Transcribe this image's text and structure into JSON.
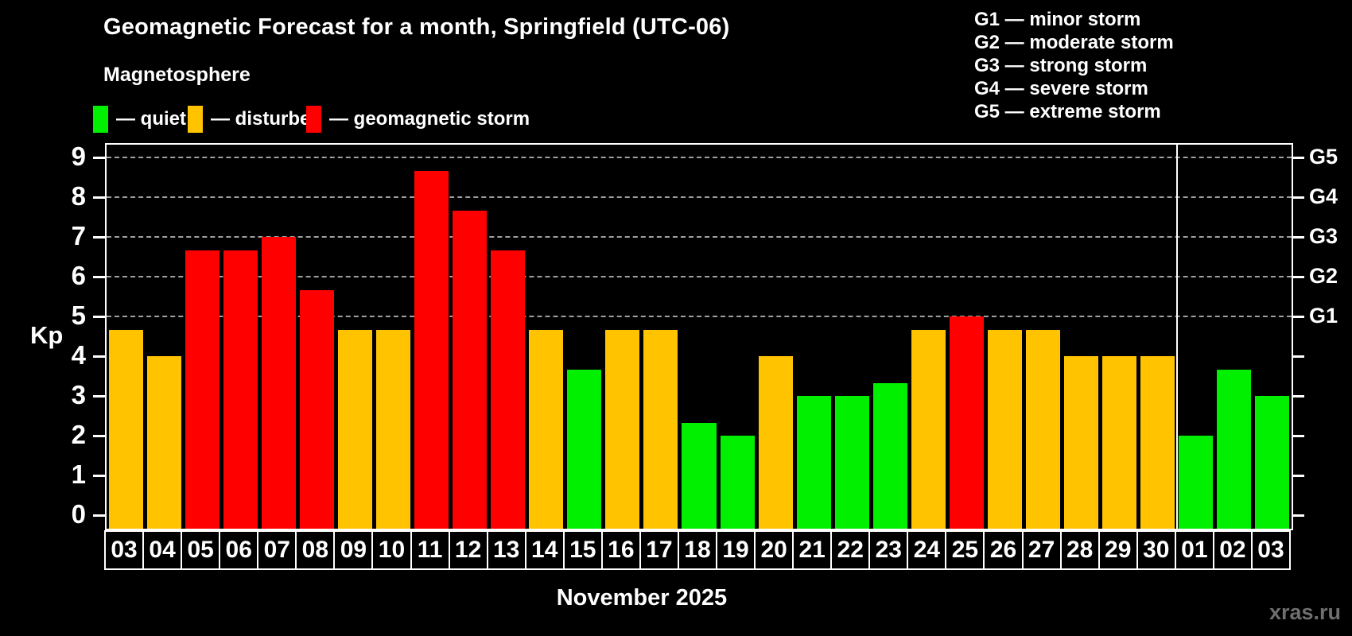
{
  "footer": {
    "watermark": "xras.ru"
  },
  "colors": {
    "quiet": "#00f000",
    "disturbed": "#ffc300",
    "storm": "#ff0000",
    "grid": "#a0a0a0",
    "frame": "#ffffff",
    "watermark": "#6f6f6f"
  },
  "legend": {
    "items": [
      {
        "status": "quiet",
        "label": "— quiet"
      },
      {
        "status": "disturbed",
        "label": "— disturbed"
      },
      {
        "status": "storm",
        "label": "— geomagnetic storm"
      }
    ]
  },
  "g_legend": {
    "lines": [
      "G1 — minor storm",
      "G2 — moderate storm",
      "G3 — strong storm",
      "G4 — severe storm",
      "G5 — extreme storm"
    ]
  },
  "chart_data": {
    "type": "bar",
    "title": "Geomagnetic Forecast for a month, Springfield (UTC-06)",
    "subtitle": "Magnetosphere",
    "xlabel": "November 2025",
    "ylabel": "Kp",
    "ylim": [
      0,
      9
    ],
    "y_ticks": [
      0,
      1,
      2,
      3,
      4,
      5,
      6,
      7,
      8,
      9
    ],
    "grid": "dashed lines at Kp 5-9 only",
    "legend_position": "top",
    "grid_levels": [
      {
        "kp": 5,
        "label": "G1"
      },
      {
        "kp": 6,
        "label": "G2"
      },
      {
        "kp": 7,
        "label": "G3"
      },
      {
        "kp": 8,
        "label": "G4"
      },
      {
        "kp": 9,
        "label": "G5"
      }
    ],
    "separator_after_index": 27,
    "bars": [
      {
        "day": "03",
        "kp": 4.67,
        "status": "disturbed"
      },
      {
        "day": "04",
        "kp": 4.0,
        "status": "disturbed"
      },
      {
        "day": "05",
        "kp": 6.67,
        "status": "storm"
      },
      {
        "day": "06",
        "kp": 6.67,
        "status": "storm"
      },
      {
        "day": "07",
        "kp": 7.0,
        "status": "storm"
      },
      {
        "day": "08",
        "kp": 5.67,
        "status": "storm"
      },
      {
        "day": "09",
        "kp": 4.67,
        "status": "disturbed"
      },
      {
        "day": "10",
        "kp": 4.67,
        "status": "disturbed"
      },
      {
        "day": "11",
        "kp": 8.67,
        "status": "storm"
      },
      {
        "day": "12",
        "kp": 7.67,
        "status": "storm"
      },
      {
        "day": "13",
        "kp": 6.67,
        "status": "storm"
      },
      {
        "day": "14",
        "kp": 4.67,
        "status": "disturbed"
      },
      {
        "day": "15",
        "kp": 3.67,
        "status": "quiet"
      },
      {
        "day": "16",
        "kp": 4.67,
        "status": "disturbed"
      },
      {
        "day": "17",
        "kp": 4.67,
        "status": "disturbed"
      },
      {
        "day": "18",
        "kp": 2.33,
        "status": "quiet"
      },
      {
        "day": "19",
        "kp": 2.0,
        "status": "quiet"
      },
      {
        "day": "20",
        "kp": 4.0,
        "status": "disturbed"
      },
      {
        "day": "21",
        "kp": 3.0,
        "status": "quiet"
      },
      {
        "day": "22",
        "kp": 3.0,
        "status": "quiet"
      },
      {
        "day": "23",
        "kp": 3.33,
        "status": "quiet"
      },
      {
        "day": "24",
        "kp": 4.67,
        "status": "disturbed"
      },
      {
        "day": "25",
        "kp": 5.0,
        "status": "storm"
      },
      {
        "day": "26",
        "kp": 4.67,
        "status": "disturbed"
      },
      {
        "day": "27",
        "kp": 4.67,
        "status": "disturbed"
      },
      {
        "day": "28",
        "kp": 4.0,
        "status": "disturbed"
      },
      {
        "day": "29",
        "kp": 4.0,
        "status": "disturbed"
      },
      {
        "day": "30",
        "kp": 4.0,
        "status": "disturbed"
      },
      {
        "day": "01",
        "kp": 2.0,
        "status": "quiet"
      },
      {
        "day": "02",
        "kp": 3.67,
        "status": "quiet"
      },
      {
        "day": "03",
        "kp": 3.0,
        "status": "quiet"
      }
    ]
  }
}
